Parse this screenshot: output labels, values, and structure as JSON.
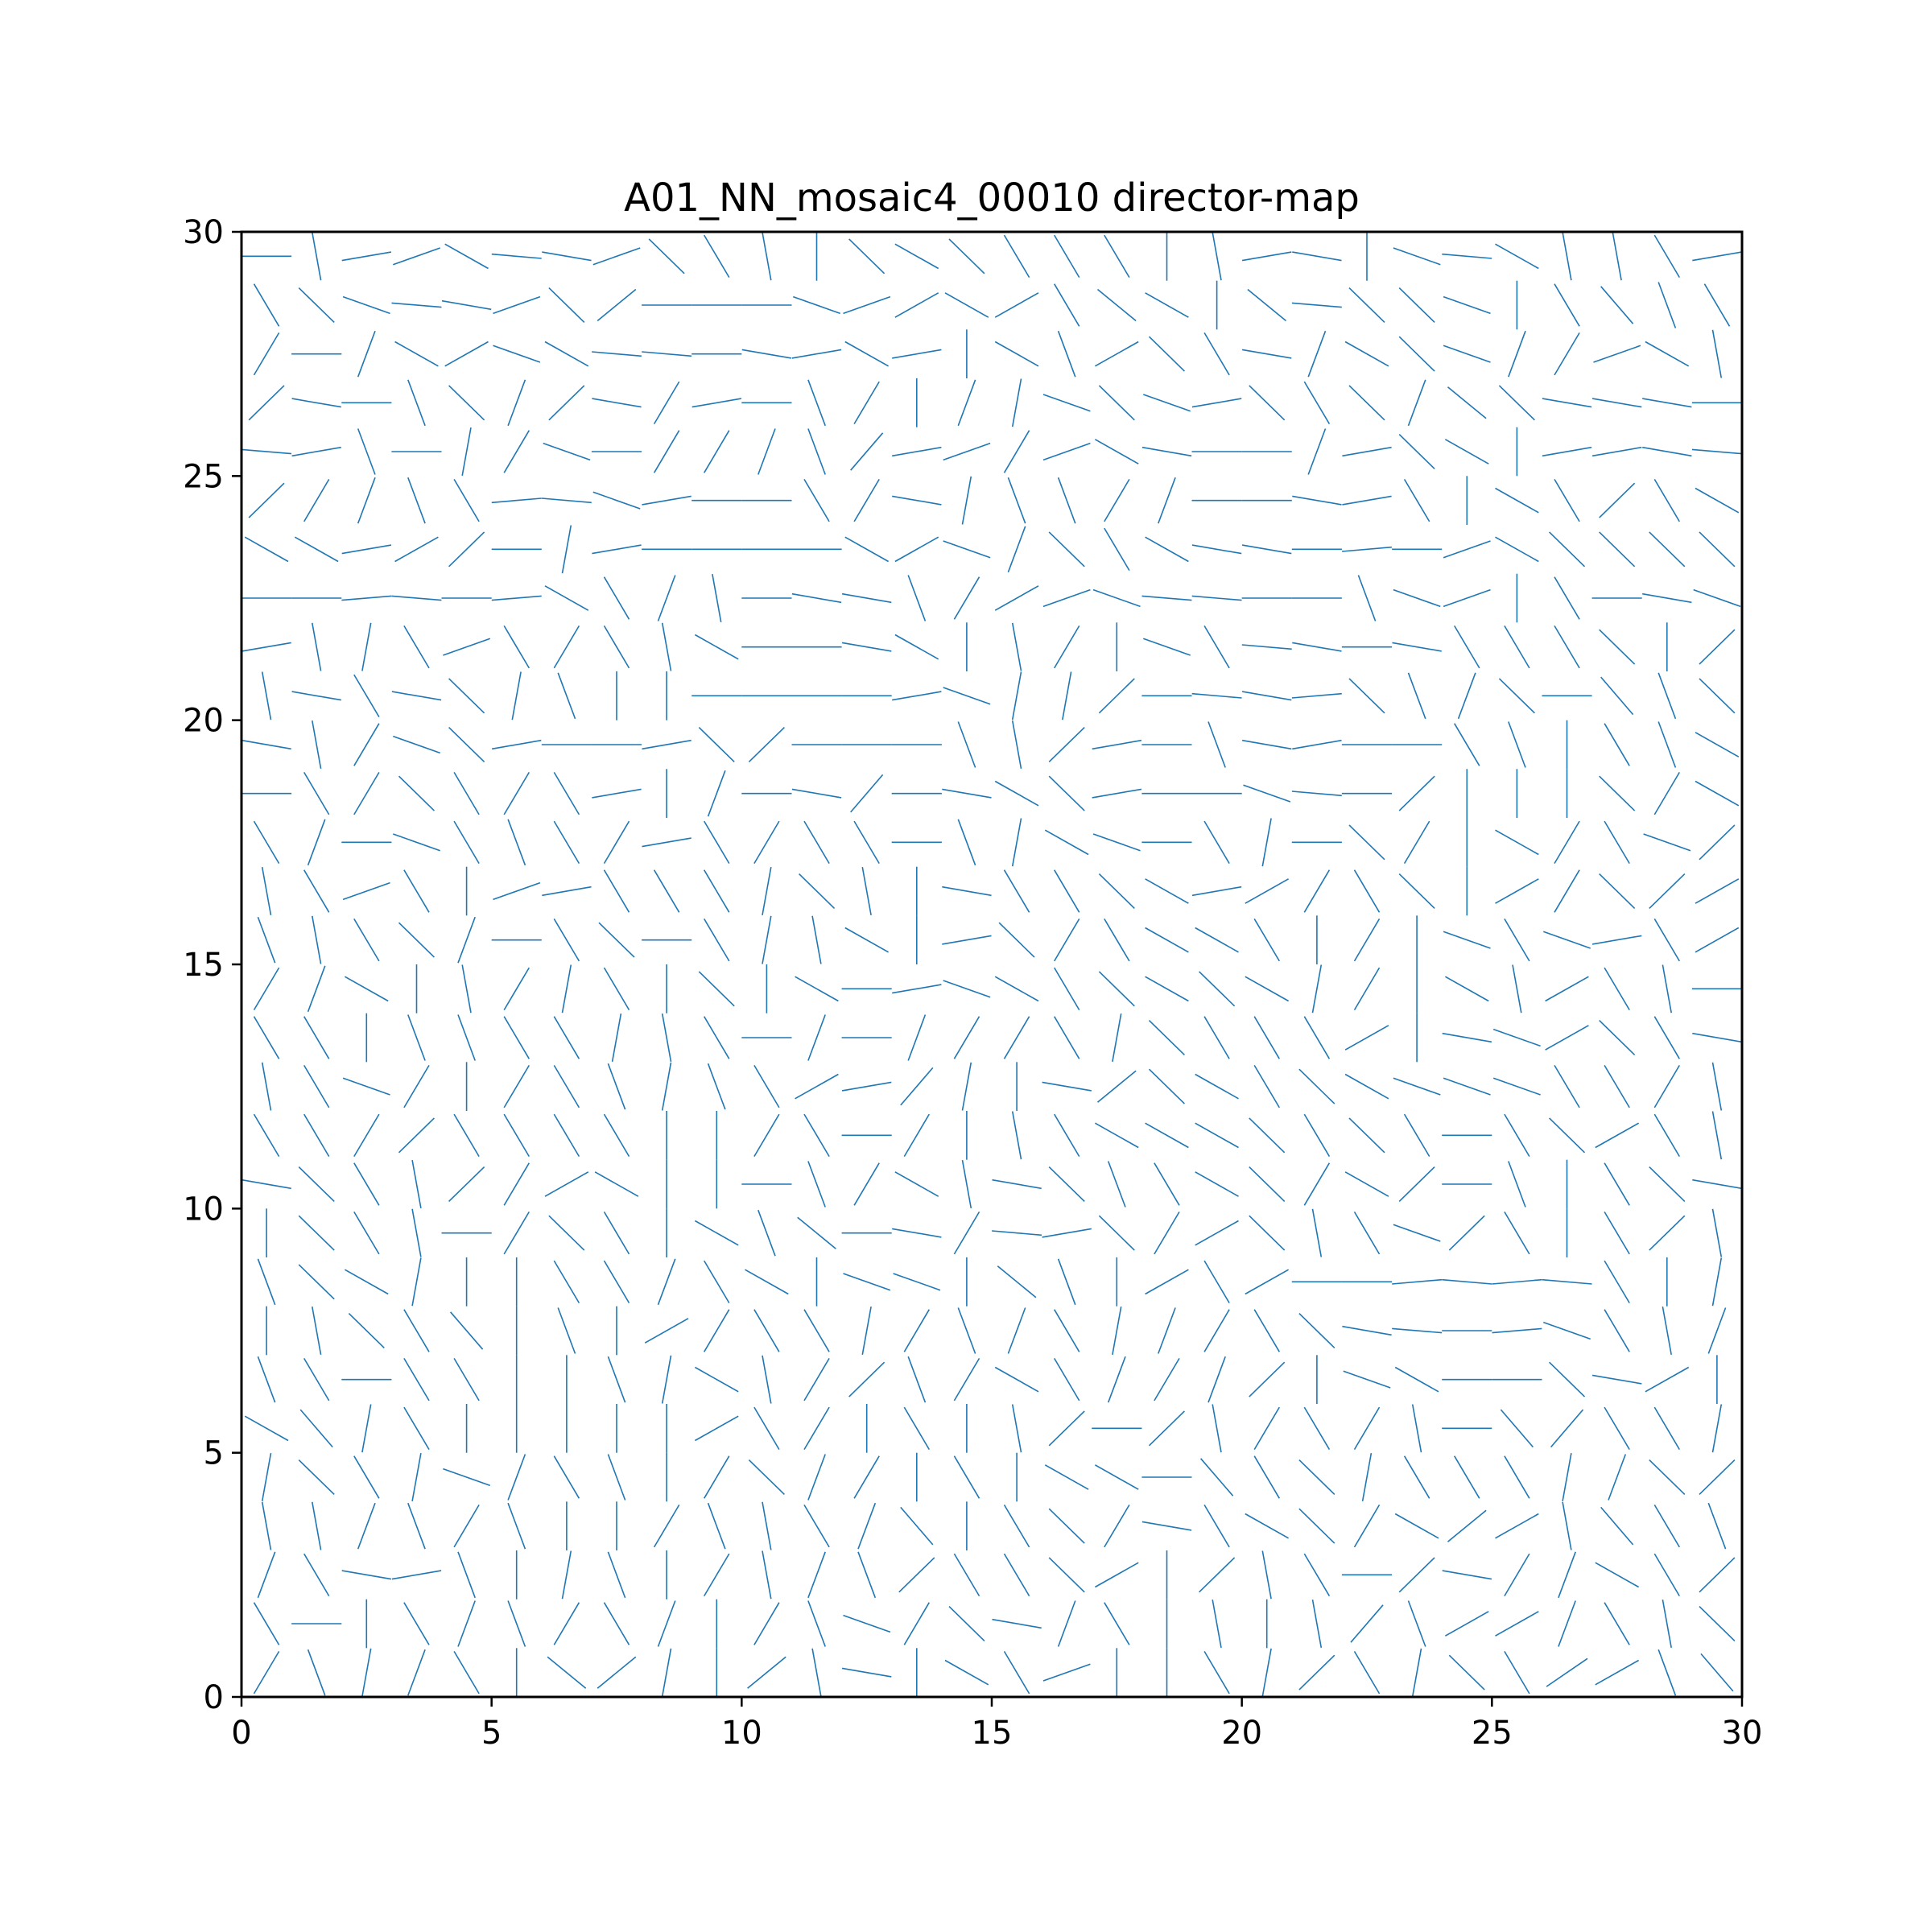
{
  "chart_data": {
    "type": "director-field",
    "title": "A01_NN_mosaic4_00010 director-map",
    "xlabel": "",
    "ylabel": "",
    "xlim": [
      0,
      30
    ],
    "ylim": [
      0,
      30
    ],
    "x_ticks": [
      0,
      5,
      10,
      15,
      20,
      25,
      30
    ],
    "y_ticks": [
      0,
      5,
      10,
      15,
      20,
      25,
      30
    ],
    "x_tick_labels": [
      "0",
      "5",
      "10",
      "15",
      "20",
      "25",
      "30"
    ],
    "y_tick_labels": [
      "0",
      "5",
      "10",
      "15",
      "20",
      "25",
      "30"
    ],
    "grid": false,
    "legend": "none",
    "segment_color": "#1f77b4",
    "segment_length": 1.0,
    "lattice": {
      "start": 0.5,
      "step": 1.0,
      "count": 30
    },
    "angles_deg_rows_bottom_to_top": [
      [
        60,
        -70,
        80,
        70,
        -60,
        90,
        -40,
        40,
        80,
        -90,
        40,
        -80,
        -10,
        90,
        -30,
        -60,
        20,
        -90,
        90,
        -60,
        80,
        45,
        -60,
        80,
        -45,
        -60,
        35,
        30,
        -70,
        -50
      ],
      [
        -60,
        0,
        90,
        -60,
        70,
        -70,
        60,
        -60,
        70,
        90,
        60,
        -70,
        -20,
        60,
        -45,
        -10,
        70,
        -60,
        90,
        -80,
        90,
        -80,
        50,
        -70,
        30,
        30,
        70,
        -60,
        -80,
        -45
      ],
      [
        70,
        -60,
        -10,
        10,
        -70,
        90,
        80,
        -70,
        90,
        60,
        -80,
        70,
        -70,
        45,
        -60,
        -60,
        -45,
        30,
        -90,
        45,
        -80,
        -60,
        0,
        45,
        -10,
        60,
        70,
        -30,
        -60,
        45
      ],
      [
        -80,
        -80,
        70,
        -70,
        60,
        -70,
        90,
        -90,
        60,
        -70,
        -80,
        -60,
        70,
        -50,
        90,
        -60,
        -45,
        60,
        -10,
        -60,
        -30,
        -45,
        60,
        -30,
        40,
        30,
        -80,
        -50,
        -60,
        -70
      ],
      [
        80,
        -45,
        -60,
        80,
        -20,
        70,
        -60,
        -70,
        90,
        60,
        -45,
        70,
        60,
        -90,
        -60,
        90,
        -30,
        -30,
        0,
        -50,
        -60,
        -45,
        80,
        -60,
        -60,
        -60,
        80,
        70,
        -45,
        45
      ],
      [
        -30,
        -50,
        80,
        -60,
        -90,
        90,
        -90,
        90,
        90,
        30,
        -60,
        60,
        90,
        -60,
        -90,
        -80,
        45,
        0,
        45,
        -80,
        60,
        -60,
        60,
        -80,
        0,
        -50,
        50,
        -60,
        -60,
        80
      ],
      [
        -70,
        -60,
        0,
        -60,
        -60,
        90,
        90,
        -70,
        80,
        -30,
        -80,
        60,
        45,
        -70,
        60,
        -30,
        -60,
        70,
        60,
        70,
        45,
        -90,
        -20,
        -30,
        0,
        0,
        -45,
        -10,
        30,
        90
      ],
      [
        -90,
        -80,
        -45,
        -60,
        -50,
        90,
        -70,
        90,
        30,
        60,
        -60,
        -60,
        80,
        60,
        -70,
        70,
        -60,
        80,
        70,
        60,
        -60,
        -45,
        -10,
        -5,
        0,
        5,
        -20,
        -60,
        -80,
        70
      ],
      [
        -70,
        -45,
        -30,
        80,
        90,
        90,
        -60,
        -60,
        70,
        -60,
        -30,
        90,
        -20,
        -20,
        -90,
        -40,
        -70,
        -90,
        30,
        -60,
        30,
        0,
        0,
        5,
        -5,
        5,
        -5,
        -60,
        -90,
        80
      ],
      [
        90,
        -45,
        -60,
        -80,
        0,
        60,
        -45,
        -60,
        90,
        -30,
        -70,
        -40,
        0,
        -10,
        60,
        -5,
        10,
        -45,
        60,
        30,
        -45,
        -80,
        -60,
        -20,
        45,
        -60,
        90,
        -60,
        45,
        -80
      ],
      [
        -10,
        -45,
        -60,
        -80,
        45,
        60,
        30,
        -30,
        90,
        -90,
        0,
        -70,
        60,
        -30,
        -80,
        -10,
        -45,
        -70,
        -60,
        -30,
        -45,
        60,
        -30,
        45,
        0,
        -70,
        90,
        -60,
        -45,
        -10
      ],
      [
        -60,
        -60,
        60,
        45,
        -60,
        -60,
        -60,
        -60,
        -90,
        -90,
        60,
        -60,
        0,
        60,
        -90,
        -80,
        -60,
        -30,
        -30,
        -30,
        -45,
        -60,
        -45,
        -60,
        0,
        -60,
        -45,
        30,
        -60,
        -80
      ],
      [
        -80,
        -60,
        -20,
        60,
        90,
        60,
        -60,
        -70,
        80,
        -70,
        -60,
        30,
        10,
        50,
        80,
        -90,
        -10,
        40,
        -45,
        -30,
        -60,
        -45,
        -30,
        -20,
        -20,
        -20,
        -60,
        -60,
        60,
        -80
      ],
      [
        -60,
        -60,
        90,
        -70,
        -70,
        -60,
        -60,
        80,
        -80,
        -60,
        0,
        70,
        0,
        70,
        60,
        60,
        -60,
        80,
        -45,
        -60,
        -60,
        -60,
        30,
        -90,
        -10,
        -20,
        30,
        -45,
        -60,
        -10
      ],
      [
        60,
        70,
        -30,
        90,
        -80,
        60,
        80,
        -60,
        -90,
        -45,
        90,
        -30,
        0,
        10,
        -20,
        -30,
        -60,
        -45,
        -30,
        -45,
        -30,
        80,
        60,
        90,
        -30,
        -80,
        30,
        -60,
        -80,
        0
      ],
      [
        -70,
        -80,
        -60,
        -45,
        70,
        0,
        -60,
        -45,
        0,
        -60,
        80,
        -80,
        -30,
        90,
        10,
        -45,
        60,
        -60,
        -30,
        -30,
        -60,
        90,
        60,
        90,
        -20,
        -60,
        -20,
        10,
        -60,
        30
      ],
      [
        -80,
        -60,
        20,
        -60,
        90,
        20,
        10,
        -60,
        -60,
        -60,
        80,
        -45,
        -80,
        90,
        -10,
        -60,
        -60,
        -45,
        -30,
        10,
        30,
        60,
        -60,
        -45,
        90,
        30,
        60,
        -45,
        45,
        30
      ],
      [
        -60,
        70,
        0,
        -20,
        -60,
        -70,
        -60,
        60,
        10,
        -60,
        60,
        -60,
        -60,
        0,
        -70,
        80,
        -30,
        -20,
        0,
        -60,
        80,
        0,
        -45,
        60,
        90,
        -30,
        60,
        -60,
        -20,
        45
      ],
      [
        0,
        -60,
        60,
        -45,
        -60,
        60,
        -60,
        10,
        90,
        70,
        0,
        -10,
        50,
        0,
        -10,
        -30,
        -45,
        10,
        0,
        0,
        -20,
        -5,
        0,
        45,
        90,
        -90,
        90,
        -45,
        60,
        -30
      ],
      [
        -10,
        -80,
        60,
        -20,
        -45,
        10,
        0,
        0,
        10,
        -45,
        45,
        0,
        0,
        0,
        -70,
        -80,
        45,
        10,
        0,
        -70,
        -10,
        10,
        0,
        0,
        -60,
        -70,
        -90,
        -60,
        -70,
        -30
      ],
      [
        -80,
        -10,
        -60,
        -10,
        -45,
        80,
        -70,
        90,
        90,
        0,
        0,
        0,
        0,
        10,
        -20,
        80,
        80,
        45,
        0,
        -5,
        -10,
        5,
        -45,
        -70,
        70,
        -45,
        0,
        -50,
        -70,
        -45
      ],
      [
        10,
        -80,
        80,
        -60,
        20,
        -60,
        60,
        -60,
        -80,
        -30,
        0,
        0,
        -10,
        -30,
        90,
        -80,
        60,
        90,
        -20,
        -60,
        -5,
        -10,
        0,
        -10,
        -60,
        -60,
        -60,
        -45,
        90,
        45
      ],
      [
        0,
        0,
        5,
        -5,
        0,
        5,
        -30,
        -60,
        70,
        -80,
        0,
        -10,
        -10,
        -70,
        60,
        30,
        20,
        -20,
        -5,
        -5,
        0,
        0,
        -70,
        -20,
        20,
        -90,
        -60,
        0,
        -10,
        -20
      ],
      [
        -30,
        -30,
        10,
        30,
        45,
        0,
        80,
        10,
        0,
        0,
        0,
        0,
        -30,
        30,
        -20,
        70,
        -45,
        -60,
        -30,
        -10,
        -10,
        0,
        5,
        0,
        20,
        -30,
        -45,
        -45,
        -45,
        -45
      ],
      [
        45,
        60,
        70,
        -70,
        -60,
        5,
        -5,
        -20,
        10,
        0,
        0,
        -60,
        60,
        -10,
        80,
        -70,
        -70,
        60,
        70,
        0,
        0,
        -10,
        10,
        -60,
        90,
        -30,
        -60,
        45,
        -60,
        -30
      ],
      [
        -5,
        10,
        -70,
        0,
        80,
        60,
        -20,
        0,
        60,
        60,
        70,
        -70,
        50,
        10,
        20,
        60,
        20,
        -30,
        -10,
        0,
        0,
        70,
        10,
        -45,
        -30,
        90,
        10,
        10,
        -10,
        -5
      ],
      [
        45,
        -10,
        0,
        -70,
        -45,
        70,
        45,
        -10,
        60,
        10,
        0,
        -70,
        60,
        90,
        70,
        80,
        -20,
        -45,
        -20,
        10,
        -45,
        -60,
        -45,
        70,
        -40,
        -45,
        -10,
        -10,
        -10,
        0
      ],
      [
        60,
        0,
        70,
        -30,
        30,
        -20,
        -30,
        -5,
        -5,
        0,
        -10,
        10,
        -30,
        10,
        90,
        -30,
        -70,
        30,
        -45,
        -60,
        -10,
        70,
        -30,
        -45,
        -20,
        70,
        60,
        20,
        -30,
        -80
      ],
      [
        -60,
        -45,
        -20,
        -5,
        -10,
        20,
        -45,
        40,
        0,
        0,
        0,
        -20,
        20,
        30,
        -30,
        30,
        -60,
        -40,
        -30,
        90,
        -40,
        -5,
        -45,
        -45,
        -20,
        -90,
        -60,
        -50,
        -70,
        -60
      ],
      [
        0,
        -80,
        10,
        20,
        -30,
        -5,
        -10,
        20,
        -45,
        -60,
        -80,
        90,
        -45,
        -30,
        -45,
        -60,
        -60,
        -60,
        90,
        -80,
        10,
        -10,
        90,
        -20,
        -5,
        -30,
        -80,
        -80,
        -60,
        10
      ]
    ]
  }
}
